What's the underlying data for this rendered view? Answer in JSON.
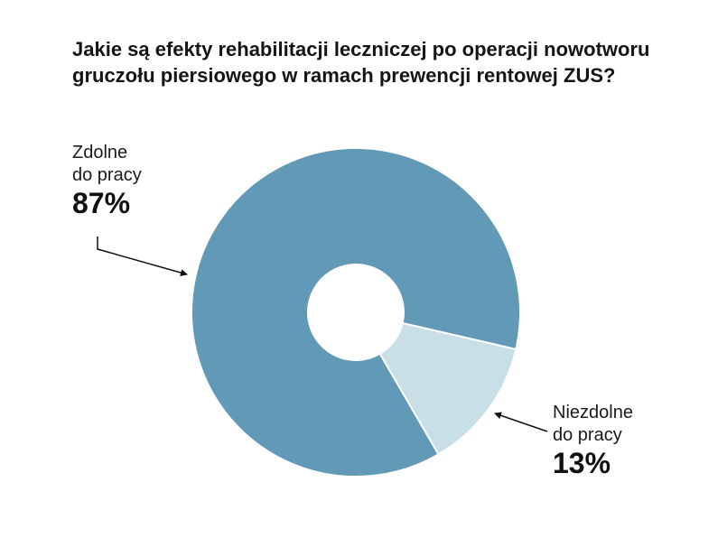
{
  "chart_data": {
    "type": "pie",
    "donut": true,
    "title": "Jakie są efekty rehabilitacji leczniczej po operacji nowotworu gruczołu piersiowego w ramach prewencji rentowej ZUS?",
    "legend": "none",
    "series": [
      {
        "label_line1": "Zdolne",
        "label_line2": "do pracy",
        "value": 87,
        "value_label": "87%",
        "color": "#6199b7"
      },
      {
        "label_line1": "Niezdolne",
        "label_line2": "do pracy",
        "value": 13,
        "value_label": "13%",
        "color": "#c9dfe8"
      }
    ]
  }
}
